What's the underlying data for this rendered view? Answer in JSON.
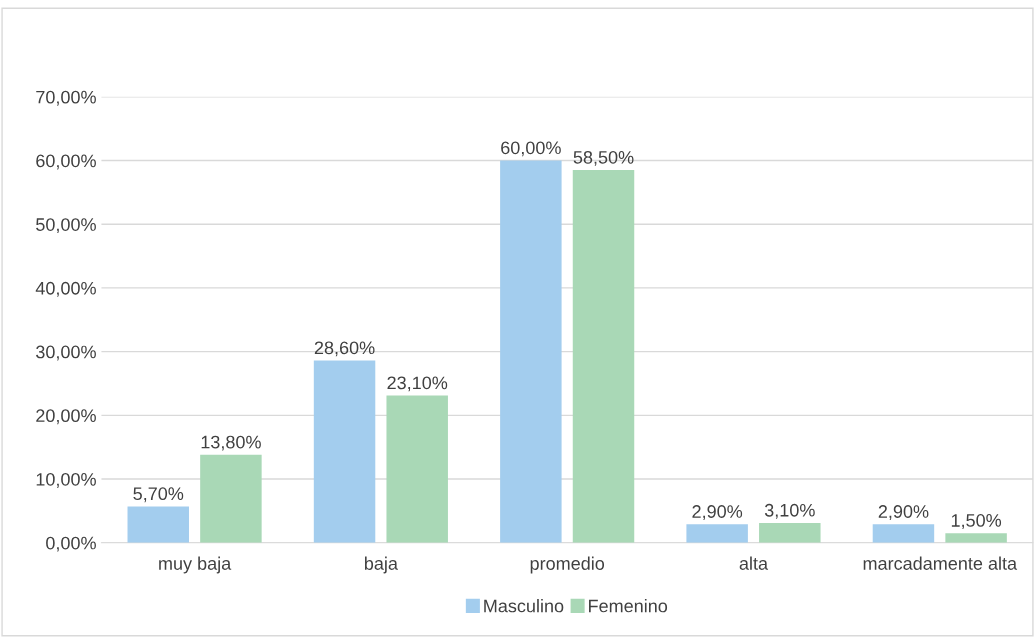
{
  "chart_data": {
    "type": "bar",
    "categories": [
      "muy baja",
      "baja",
      "promedio",
      "alta",
      "marcadamente alta"
    ],
    "series": [
      {
        "name": "Masculino",
        "color": "#a3cdee",
        "values": [
          5.7,
          28.6,
          60.0,
          2.9,
          2.9
        ],
        "value_labels": [
          "5,70%",
          "28,60%",
          "60,00%",
          "2,90%",
          "2,90%"
        ]
      },
      {
        "name": "Femenino",
        "color": "#a9d8b6",
        "values": [
          13.8,
          23.1,
          58.5,
          3.1,
          1.5
        ],
        "value_labels": [
          "13,80%",
          "23,10%",
          "58,50%",
          "3,10%",
          "1,50%"
        ]
      }
    ],
    "ylim": [
      0,
      70
    ],
    "yticks": [
      {
        "value": 0,
        "label": "0,00%"
      },
      {
        "value": 10,
        "label": "10,00%"
      },
      {
        "value": 20,
        "label": "20,00%"
      },
      {
        "value": 30,
        "label": "30,00%"
      },
      {
        "value": 40,
        "label": "40,00%"
      },
      {
        "value": 50,
        "label": "50,00%"
      },
      {
        "value": 60,
        "label": "60,00%"
      },
      {
        "value": 70,
        "label": "70,00%"
      }
    ],
    "grid": "y",
    "legend": "bottom"
  }
}
